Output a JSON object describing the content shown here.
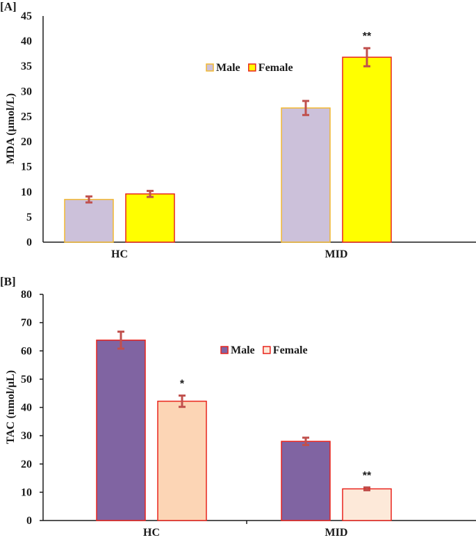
{
  "chart_data": [
    {
      "panel_label": "[A]",
      "type": "bar",
      "title": "",
      "xlabel": "",
      "ylabel": "MDA (µmol/L)",
      "ylim": [
        0,
        45
      ],
      "yticks": [
        0,
        5,
        10,
        15,
        20,
        25,
        30,
        35,
        40,
        45
      ],
      "categories": [
        "HC",
        "MID"
      ],
      "legend": {
        "position": "center-top"
      },
      "series": [
        {
          "name": "Male",
          "fill": "#ccc1da",
          "stroke": "#f2b830",
          "values": [
            8.5,
            26.7
          ],
          "errors": [
            0.6,
            1.4
          ],
          "annotations": [
            "",
            ""
          ]
        },
        {
          "name": "Female",
          "fill": "#ffff00",
          "stroke": "#e8231c",
          "values": [
            9.6,
            36.8
          ],
          "errors": [
            0.6,
            1.8
          ],
          "annotations": [
            "",
            "**"
          ]
        }
      ],
      "error_color": "#c0504d",
      "grid": false
    },
    {
      "panel_label": "[B]",
      "type": "bar",
      "title": "",
      "xlabel": "",
      "ylabel": "TAC (nmol/µL)",
      "ylim": [
        0,
        80
      ],
      "yticks": [
        0,
        10,
        20,
        30,
        40,
        50,
        60,
        70,
        80
      ],
      "categories": [
        "HC",
        "MID"
      ],
      "legend": {
        "position": "center-top"
      },
      "series": [
        {
          "name": "Male",
          "fill": "#8064a2",
          "stroke": "#e8231c",
          "values": [
            63.8,
            28.0
          ],
          "errors": [
            3.0,
            1.3
          ],
          "annotations": [
            "",
            ""
          ]
        },
        {
          "name": "Female",
          "fill": [
            "#fcd5b5",
            "#fde9d9"
          ],
          "stroke": "#e8231c",
          "values": [
            42.2,
            11.2
          ],
          "errors": [
            2.0,
            0.5
          ],
          "annotations": [
            "*",
            "**"
          ]
        }
      ],
      "error_color": "#c0504d",
      "grid": false
    }
  ]
}
